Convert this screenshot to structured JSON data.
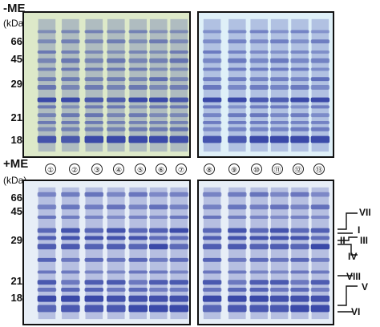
{
  "conditions": {
    "top": "-ME",
    "bottom": "+ME"
  },
  "mw_unit": "(kDa)",
  "mw_markers_top": [
    "66",
    "45",
    "29",
    "21",
    "18"
  ],
  "mw_markers_bottom": [
    "66",
    "45",
    "29",
    "21",
    "18"
  ],
  "lane_numbers": [
    "①",
    "②",
    "③",
    "④",
    "⑤",
    "⑥",
    "⑦",
    "⑧",
    "⑨",
    "⑩",
    "⑪",
    "⑫",
    "⑬"
  ],
  "band_labels": [
    "VII",
    "I",
    "II",
    "III",
    "IV",
    "VIII",
    "V",
    "VI"
  ],
  "colors": {
    "stain": "#3a49a8",
    "top_left_bg": "#dde9c9",
    "top_right_bg": "#dff0f8",
    "bottom_bg": "#e7eef7"
  }
}
